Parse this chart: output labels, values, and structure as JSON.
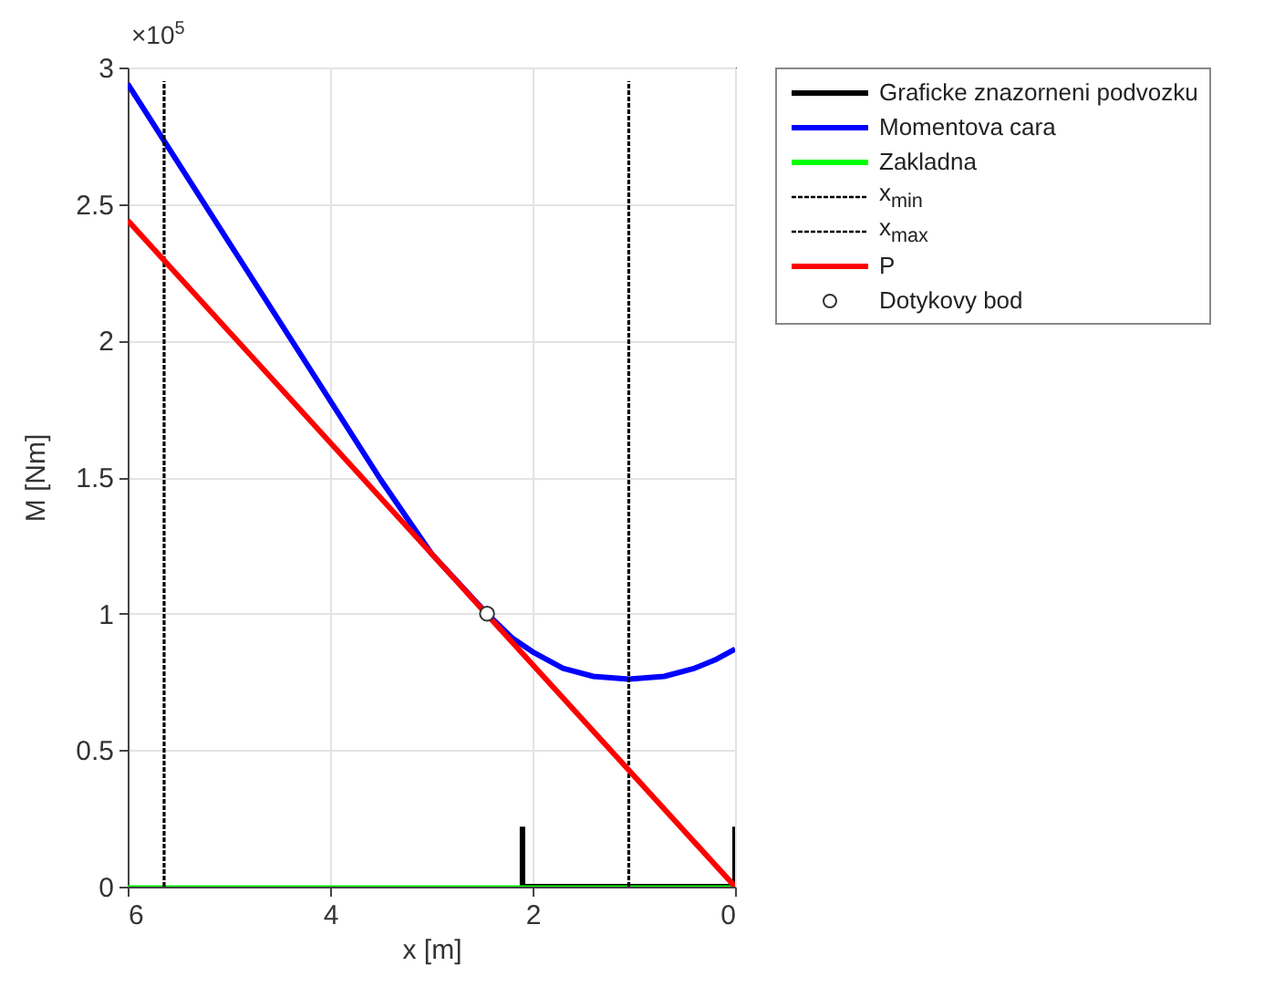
{
  "chart_data": {
    "type": "line",
    "xlabel": "x [m]",
    "ylabel": "M [Nm]",
    "annotations": [
      "×10$^{5}$"
    ],
    "xlim": [
      6,
      0
    ],
    "xticks": [
      6,
      4,
      2,
      0
    ],
    "ylim": [
      0,
      3
    ],
    "yticks": [
      0,
      0.5,
      1,
      1.5,
      2,
      2.5,
      3
    ],
    "grid": true,
    "legend": "top right",
    "series": [
      {
        "name": "Graficke znazorneni podvozku",
        "color": "#000000",
        "x": [
          2.1,
          2.1,
          0,
          0
        ],
        "values": [
          0.22,
          0,
          0,
          0.22
        ]
      },
      {
        "name": "Momentova cara",
        "color": "#0000ff",
        "x": [
          6,
          5,
          4,
          3.5,
          3,
          2.7,
          2.45,
          2.2,
          2,
          1.7,
          1.4,
          1.05,
          0.7,
          0.4,
          0.2,
          0
        ],
        "values": [
          2.94,
          2.36,
          1.78,
          1.49,
          1.22,
          1.1,
          1.0,
          0.91,
          0.86,
          0.8,
          0.77,
          0.76,
          0.77,
          0.8,
          0.83,
          0.87
        ]
      },
      {
        "name": "Zakladna",
        "color": "#00ff00",
        "x": [
          6,
          0
        ],
        "values": [
          0,
          0
        ]
      },
      {
        "name": "x$_{min}$",
        "color": "#000000",
        "line_style": "dotted",
        "x": [
          5.64,
          5.64
        ],
        "values": [
          0,
          2.95
        ]
      },
      {
        "name": "x$_{max}$",
        "color": "#000000",
        "line_style": "dotted",
        "x": [
          1.05,
          1.05
        ],
        "values": [
          0,
          2.95
        ]
      },
      {
        "name": "P",
        "color": "#ff0000",
        "x": [
          6,
          0
        ],
        "values": [
          2.44,
          0
        ]
      },
      {
        "name": "Dotykovy bod",
        "type": "scatter",
        "marker": "circle",
        "color": "#333333",
        "x": [
          2.45
        ],
        "values": [
          1.0
        ]
      }
    ]
  }
}
